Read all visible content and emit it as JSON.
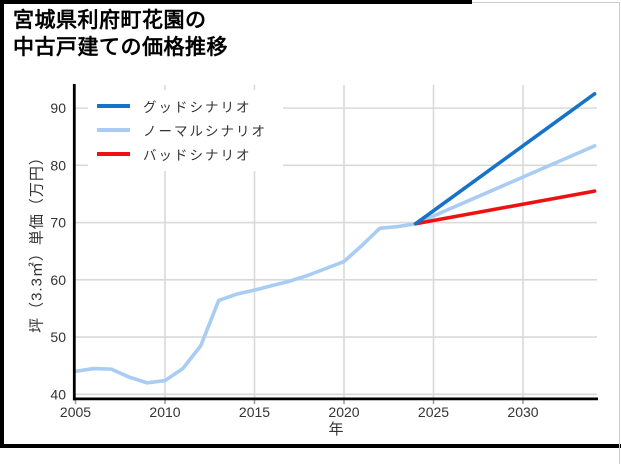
{
  "header": {
    "title_lines": [
      "宮城県利府町花園の",
      "中古戸建ての価格推移"
    ]
  },
  "chart_data": {
    "type": "line",
    "title": "宮城県利府町花園の中古戸建ての価格推移",
    "xlabel": "年",
    "ylabel": "坪（3.3㎡）単価（万円）",
    "x_ticks": [
      2005,
      2010,
      2015,
      2020,
      2025,
      2030
    ],
    "y_ticks": [
      40,
      50,
      60,
      70,
      80,
      90
    ],
    "xlim": [
      2005,
      2034.6
    ],
    "ylim": [
      39.2,
      94.2
    ],
    "grid": true,
    "legend_position": "upper-left",
    "colors": {
      "grid": "#d9d9d9",
      "axis_spine": "#000000",
      "tick_text": "#333333",
      "good": "#1673c7",
      "normal": "#a8ccf2",
      "bad": "#ee1111"
    },
    "series": [
      {
        "id": "good",
        "name": "グッドシナリオ",
        "color": "#1673c7",
        "x": [
          2024,
          2034
        ],
        "y": [
          69.8,
          92.5
        ]
      },
      {
        "id": "normal",
        "name": "ノーマルシナリオ",
        "color": "#a8ccf2",
        "x": [
          2005,
          2006,
          2007,
          2008,
          2009,
          2010,
          2011,
          2012,
          2013,
          2014,
          2015,
          2016,
          2017,
          2018,
          2019,
          2020,
          2021,
          2022,
          2023,
          2024,
          2034
        ],
        "y": [
          44.0,
          44.5,
          44.4,
          43.0,
          42.0,
          42.4,
          44.5,
          48.5,
          56.4,
          57.5,
          58.2,
          59.0,
          59.8,
          60.8,
          62.0,
          63.2,
          66.0,
          69.0,
          69.3,
          69.8,
          83.4
        ]
      },
      {
        "id": "bad",
        "name": "バッドシナリオ",
        "color": "#ee1111",
        "x": [
          2024,
          2034
        ],
        "y": [
          69.8,
          75.5
        ]
      }
    ]
  }
}
